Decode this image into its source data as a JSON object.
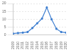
{
  "chart_data": {
    "type": "line",
    "categories": [
      "2009",
      "2010",
      "2011",
      "2012",
      "2013",
      "2014",
      "2015",
      "2016",
      "2017",
      "2018",
      "2019",
      "2020"
    ],
    "values": [
      1.0,
      1.3,
      1.6,
      2.0,
      4.5,
      7.5,
      10.5,
      17.5,
      10,
      4,
      2,
      1.6
    ],
    "color": "#3f7fd0",
    "ylim": [
      0,
      20
    ],
    "yticks": [
      0,
      5,
      10,
      15,
      20
    ],
    "grid": true
  }
}
